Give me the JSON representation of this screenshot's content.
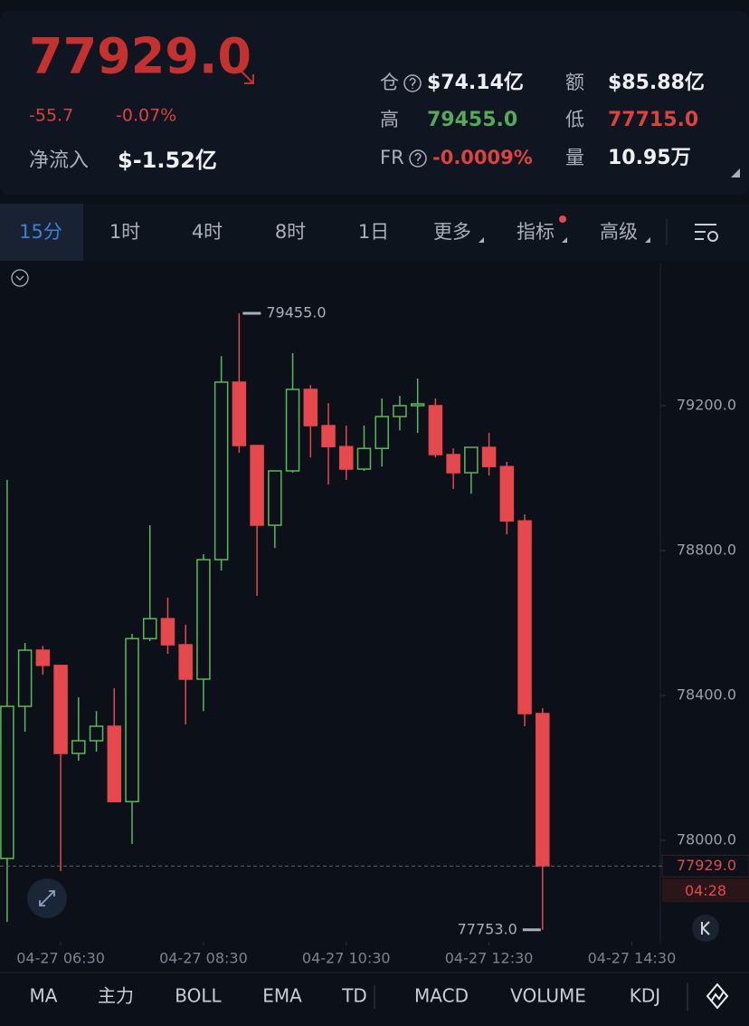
{
  "header": {
    "price": "77929.0",
    "change": "-55.7",
    "change_pct": "-0.07%",
    "net_inflow_label": "净流入",
    "net_inflow": "$-1.52亿",
    "stats": [
      {
        "label": "仓",
        "value": "$74.14亿"
      },
      {
        "label": "额",
        "value": "$85.88亿"
      },
      {
        "label": "高",
        "value": "79455.0"
      },
      {
        "label": "低",
        "value": "77715.0"
      },
      {
        "label": "FR",
        "value": "-0.0009%"
      },
      {
        "label": "量",
        "value": "10.95万"
      }
    ]
  },
  "tabs": [
    "15分",
    "1时",
    "4时",
    "8时",
    "1日",
    "更多",
    "指标",
    "高级"
  ],
  "indicators": [
    "MA",
    "主力",
    "BOLL",
    "EMA",
    "TD",
    "MACD",
    "VOLUME",
    "KDJ"
  ],
  "chart_data": {
    "type": "candlestick",
    "x": [
      "04-27 05:45",
      "04-27 06:00",
      "04-27 06:15",
      "04-27 06:30",
      "04-27 06:45",
      "04-27 07:00",
      "04-27 07:15",
      "04-27 07:30",
      "04-27 07:45",
      "04-27 08:00",
      "04-27 08:15",
      "04-27 08:30",
      "04-27 08:45",
      "04-27 09:00",
      "04-27 09:15",
      "04-27 09:30",
      "04-27 09:45",
      "04-27 10:00",
      "04-27 10:15",
      "04-27 10:30",
      "04-27 10:45",
      "04-27 11:00",
      "04-27 11:15",
      "04-27 11:30",
      "04-27 11:45",
      "04-27 12:00",
      "04-27 12:15",
      "04-27 12:30",
      "04-27 12:45",
      "04-27 13:00",
      "04-27 13:15"
    ],
    "open": [
      77950,
      78370,
      78525,
      78483,
      78240,
      78275,
      78315,
      78107,
      78557,
      78612,
      78540,
      78445,
      78775,
      79265,
      79090,
      78870,
      79020,
      79245,
      79145,
      79087,
      79025,
      79082,
      79170,
      79200,
      79200,
      79065,
      79015,
      79085,
      79032,
      78882,
      78350
    ],
    "high": [
      78995,
      78545,
      78537,
      78483,
      78395,
      78357,
      78420,
      78570,
      78870,
      78670,
      78595,
      78790,
      79337,
      79455,
      79090,
      79020,
      79345,
      79257,
      79207,
      79145,
      79145,
      79220,
      79227,
      79275,
      79220,
      79082,
      79085,
      79125,
      79045,
      78900,
      78365
    ],
    "low": [
      77775,
      78300,
      78457,
      77915,
      78220,
      78245,
      78105,
      77990,
      78550,
      78515,
      78320,
      78357,
      78745,
      79070,
      78675,
      78807,
      79015,
      79057,
      78982,
      78995,
      79020,
      79032,
      79132,
      79125,
      79057,
      78970,
      78957,
      79007,
      78845,
      78315,
      77753
    ],
    "close": [
      78370,
      78525,
      78483,
      78240,
      78275,
      78315,
      78107,
      78557,
      78612,
      78540,
      78445,
      78775,
      79265,
      79090,
      78870,
      79020,
      79245,
      79145,
      79087,
      79025,
      79082,
      79170,
      79200,
      79205,
      79065,
      79015,
      79085,
      79032,
      78882,
      78350,
      77929
    ],
    "up_color": "#5cb85c",
    "down_color": "#e5484d",
    "ylim": [
      77720,
      79595
    ],
    "yticks": [
      {
        "value": 78000,
        "label": "78000.0"
      },
      {
        "value": 78400,
        "label": "78400.0"
      },
      {
        "value": 78800,
        "label": "78800.0"
      },
      {
        "value": 79200,
        "label": "79200.0"
      }
    ],
    "xlim": [
      "04-27 05:39",
      "04-27 14:54"
    ],
    "xticks": [
      "04-27 06:30",
      "04-27 08:30",
      "04-27 10:30",
      "04-27 12:30",
      "04-27 14:30"
    ],
    "annotations": [
      {
        "value": 79455,
        "label": "79455.0"
      },
      {
        "value": 77753,
        "label": "77753.0"
      }
    ],
    "last_price": {
      "value": 77929,
      "label": "77929.0"
    },
    "countdown": "04:28"
  }
}
